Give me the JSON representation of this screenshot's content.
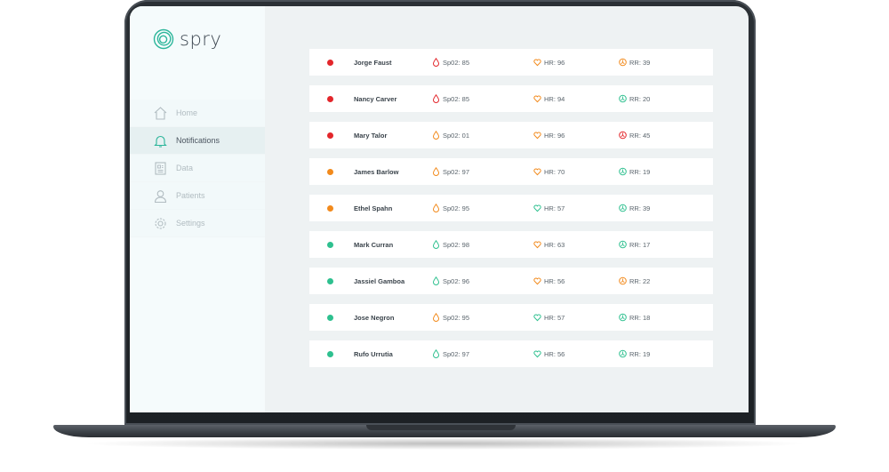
{
  "app": {
    "name": "spry"
  },
  "colors": {
    "red": "#e3262b",
    "orange": "#f28a1c",
    "green": "#2ec08f",
    "accent": "#2bb59a"
  },
  "nav": [
    {
      "label": "Home",
      "icon": "home-icon",
      "active": false
    },
    {
      "label": "Notifications",
      "icon": "bell-icon",
      "active": true
    },
    {
      "label": "Data",
      "icon": "document-icon",
      "active": false
    },
    {
      "label": "Patients",
      "icon": "user-icon",
      "active": false
    },
    {
      "label": "Settings",
      "icon": "gear-icon",
      "active": false
    }
  ],
  "patients": [
    {
      "name": "Jorge Faust",
      "status": "red",
      "spo2": "Sp02: 85",
      "spo2_color": "red",
      "hr": "HR: 96",
      "hr_color": "orange",
      "rr": "RR: 39",
      "rr_color": "orange"
    },
    {
      "name": "Nancy Carver",
      "status": "red",
      "spo2": "Sp02: 85",
      "spo2_color": "red",
      "hr": "HR: 94",
      "hr_color": "orange",
      "rr": "RR: 20",
      "rr_color": "green"
    },
    {
      "name": "Mary Talor",
      "status": "red",
      "spo2": "Sp02: 01",
      "spo2_color": "orange",
      "hr": "HR: 96",
      "hr_color": "orange",
      "rr": "RR: 45",
      "rr_color": "red"
    },
    {
      "name": "James Barlow",
      "status": "orange",
      "spo2": "Sp02: 97",
      "spo2_color": "orange",
      "hr": "HR: 70",
      "hr_color": "orange",
      "rr": "RR: 19",
      "rr_color": "green"
    },
    {
      "name": "Ethel Spahn",
      "status": "orange",
      "spo2": "Sp02: 95",
      "spo2_color": "orange",
      "hr": "HR: 57",
      "hr_color": "green",
      "rr": "RR: 39",
      "rr_color": "green"
    },
    {
      "name": "Mark Curran",
      "status": "green",
      "spo2": "Sp02: 98",
      "spo2_color": "green",
      "hr": "HR: 63",
      "hr_color": "orange",
      "rr": "RR: 17",
      "rr_color": "green"
    },
    {
      "name": "Jassiel Gamboa",
      "status": "green",
      "spo2": "Sp02: 96",
      "spo2_color": "green",
      "hr": "HR: 56",
      "hr_color": "orange",
      "rr": "RR: 22",
      "rr_color": "orange"
    },
    {
      "name": "Jose Negron",
      "status": "green",
      "spo2": "Sp02: 95",
      "spo2_color": "orange",
      "hr": "HR: 57",
      "hr_color": "green",
      "rr": "RR: 18",
      "rr_color": "green"
    },
    {
      "name": "Rufo Urrutia",
      "status": "green",
      "spo2": "Sp02: 97",
      "spo2_color": "green",
      "hr": "HR: 56",
      "hr_color": "green",
      "rr": "RR: 19",
      "rr_color": "green"
    }
  ]
}
